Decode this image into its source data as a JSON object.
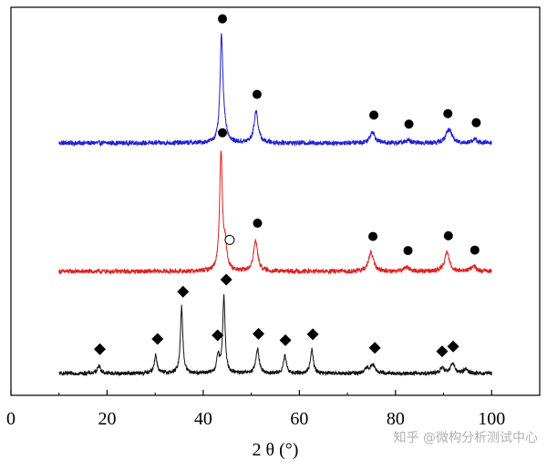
{
  "chart_data": {
    "type": "line",
    "xlabel": "2 θ (°)",
    "ylabel": "",
    "xlim": [
      0,
      110
    ],
    "xticks": [
      0,
      20,
      40,
      60,
      80,
      100
    ],
    "yticks_shown": false,
    "grid": false,
    "legend": "none",
    "series": [
      {
        "color": "#1f1fd6",
        "baseline": 0,
        "peaks": [
          {
            "x": 43.8,
            "height": 10.2,
            "width": 0.35
          },
          {
            "x": 44.5,
            "height": 1.0,
            "width": 0.5
          },
          {
            "x": 51.0,
            "height": 3.1,
            "width": 0.5
          },
          {
            "x": 75.2,
            "height": 1.1,
            "width": 0.6
          },
          {
            "x": 82.5,
            "height": 0.25,
            "width": 0.6
          },
          {
            "x": 90.9,
            "height": 1.0,
            "width": 0.6
          },
          {
            "x": 91.5,
            "height": 0.6,
            "width": 0.5
          },
          {
            "x": 96.5,
            "height": 0.35,
            "width": 0.6
          }
        ],
        "markers": [
          {
            "x": 44.0,
            "symbol": "filled-circle"
          },
          {
            "x": 51.2,
            "symbol": "filled-circle"
          },
          {
            "x": 75.5,
            "symbol": "filled-circle"
          },
          {
            "x": 82.8,
            "symbol": "filled-circle"
          },
          {
            "x": 90.9,
            "symbol": "filled-circle"
          },
          {
            "x": 96.8,
            "symbol": "filled-circle"
          }
        ]
      },
      {
        "color": "#e02020",
        "baseline": 0,
        "peaks": [
          {
            "x": 43.7,
            "height": 11.8,
            "width": 0.35
          },
          {
            "x": 44.6,
            "height": 2.2,
            "width": 0.4
          },
          {
            "x": 50.9,
            "height": 3.1,
            "width": 0.5
          },
          {
            "x": 74.9,
            "height": 1.9,
            "width": 0.6
          },
          {
            "x": 82.3,
            "height": 0.45,
            "width": 0.6
          },
          {
            "x": 90.7,
            "height": 1.9,
            "width": 0.6
          },
          {
            "x": 96.2,
            "height": 0.55,
            "width": 0.6
          }
        ],
        "markers": [
          {
            "x": 44.0,
            "symbol": "filled-circle"
          },
          {
            "x": 45.5,
            "symbol": "open-circle"
          },
          {
            "x": 51.3,
            "symbol": "filled-circle"
          },
          {
            "x": 75.3,
            "symbol": "filled-circle"
          },
          {
            "x": 82.6,
            "symbol": "filled-circle"
          },
          {
            "x": 91.0,
            "symbol": "filled-circle"
          },
          {
            "x": 96.5,
            "symbol": "filled-circle"
          }
        ]
      },
      {
        "color": "#111111",
        "baseline": 0,
        "peaks": [
          {
            "x": 18.3,
            "height": 0.9,
            "width": 0.4
          },
          {
            "x": 30.1,
            "height": 2.1,
            "width": 0.35
          },
          {
            "x": 35.5,
            "height": 7.6,
            "width": 0.3
          },
          {
            "x": 43.1,
            "height": 2.0,
            "width": 0.35
          },
          {
            "x": 44.3,
            "height": 8.7,
            "width": 0.3
          },
          {
            "x": 51.3,
            "height": 2.8,
            "width": 0.4
          },
          {
            "x": 57.0,
            "height": 2.0,
            "width": 0.35
          },
          {
            "x": 62.6,
            "height": 2.8,
            "width": 0.35
          },
          {
            "x": 74.1,
            "height": 0.6,
            "width": 0.5
          },
          {
            "x": 75.3,
            "height": 1.0,
            "width": 0.5
          },
          {
            "x": 89.7,
            "height": 0.6,
            "width": 0.5
          },
          {
            "x": 91.9,
            "height": 1.2,
            "width": 0.5
          },
          {
            "x": 94.6,
            "height": 0.5,
            "width": 0.5
          }
        ],
        "markers": [
          {
            "x": 18.5,
            "symbol": "filled-diamond"
          },
          {
            "x": 30.5,
            "symbol": "filled-diamond"
          },
          {
            "x": 35.8,
            "symbol": "filled-diamond"
          },
          {
            "x": 43.0,
            "symbol": "filled-diamond"
          },
          {
            "x": 44.8,
            "symbol": "filled-diamond"
          },
          {
            "x": 51.5,
            "symbol": "filled-diamond"
          },
          {
            "x": 57.1,
            "symbol": "filled-diamond"
          },
          {
            "x": 62.8,
            "symbol": "filled-diamond"
          },
          {
            "x": 75.7,
            "symbol": "filled-diamond"
          },
          {
            "x": 89.7,
            "symbol": "filled-diamond"
          },
          {
            "x": 92.0,
            "symbol": "filled-diamond"
          }
        ]
      }
    ]
  },
  "watermark": "知乎 @微构分析测试中心"
}
